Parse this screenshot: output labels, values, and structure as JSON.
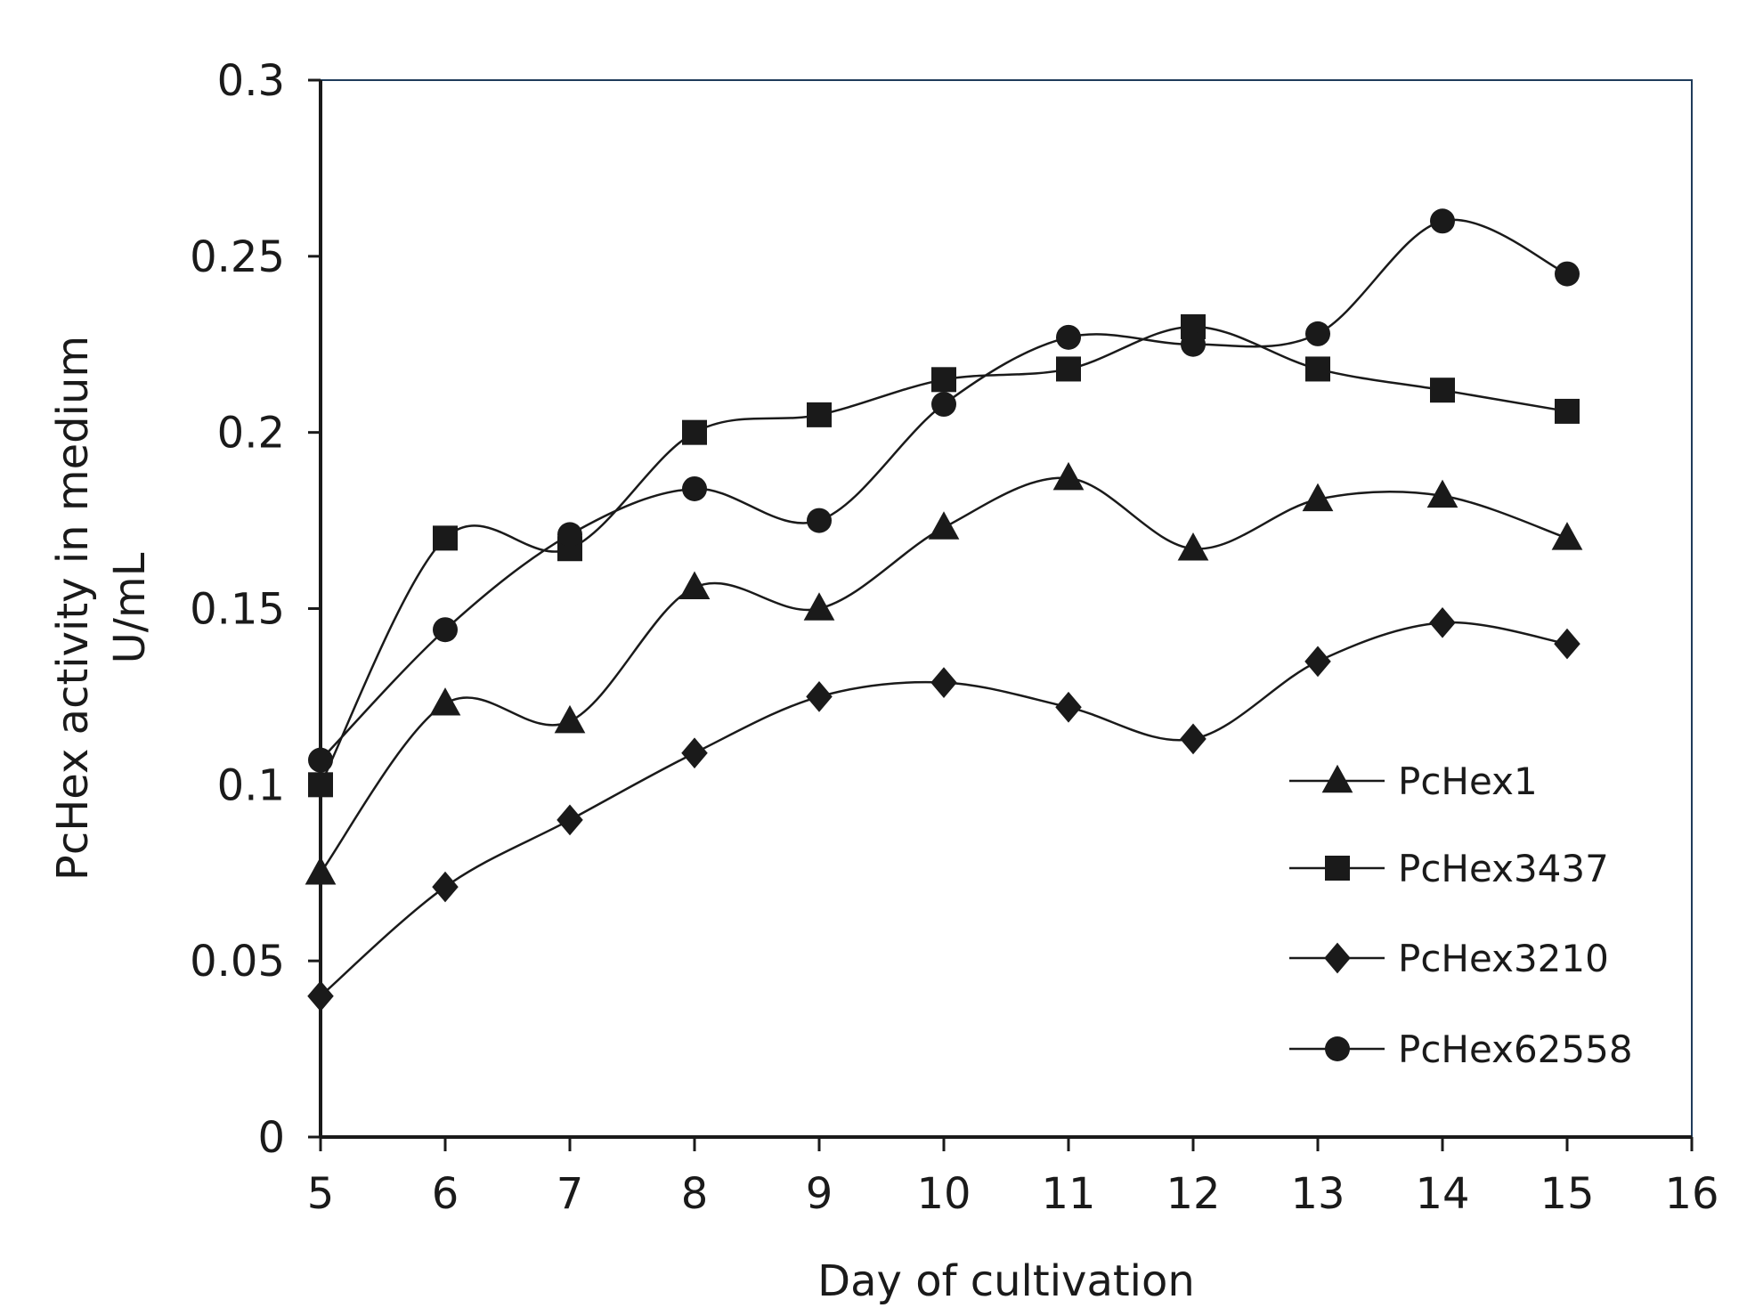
{
  "chart_data": {
    "type": "line",
    "title": "",
    "xlabel": "Day of cultivation",
    "ylabel": "PcHex activity in medium U/mL",
    "ylabel_lines": [
      "PcHex activity in medium",
      "U/mL"
    ],
    "xlim": [
      5,
      16
    ],
    "ylim": [
      0,
      0.3
    ],
    "xticks": [
      5,
      6,
      7,
      8,
      9,
      10,
      11,
      12,
      13,
      14,
      15,
      16
    ],
    "yticks": [
      0,
      0.05,
      0.1,
      0.15,
      0.2,
      0.25,
      0.3
    ],
    "xtick_labels": [
      "5",
      "6",
      "7",
      "8",
      "9",
      "10",
      "11",
      "12",
      "13",
      "14",
      "15",
      "16"
    ],
    "ytick_labels": [
      "0",
      "0.05",
      "0.1",
      "0.15",
      "0.2",
      "0.25",
      "0.3"
    ],
    "grid": false,
    "legend_position": "lower-right",
    "x": [
      5,
      6,
      7,
      8,
      9,
      10,
      11,
      12,
      13,
      14,
      15
    ],
    "series": [
      {
        "name": "PcHex1",
        "marker": "triangle",
        "values": [
          0.075,
          0.123,
          0.118,
          0.156,
          0.15,
          0.173,
          0.187,
          0.167,
          0.181,
          0.182,
          0.17
        ]
      },
      {
        "name": "PcHex3437",
        "marker": "square",
        "values": [
          0.1,
          0.17,
          0.167,
          0.2,
          0.205,
          0.215,
          0.218,
          0.23,
          0.218,
          0.212,
          0.206
        ]
      },
      {
        "name": "PcHex3210",
        "marker": "diamond",
        "values": [
          0.04,
          0.071,
          0.09,
          0.109,
          0.125,
          0.129,
          0.122,
          0.113,
          0.135,
          0.146,
          0.14
        ]
      },
      {
        "name": "PcHex62558",
        "marker": "circle",
        "values": [
          0.107,
          0.144,
          0.171,
          0.184,
          0.175,
          0.208,
          0.227,
          0.225,
          0.228,
          0.26,
          0.245
        ]
      }
    ],
    "colors": {
      "line": "#1a1a1a",
      "axis": "#1a1a1a",
      "frame": "#1f3b5a"
    }
  }
}
